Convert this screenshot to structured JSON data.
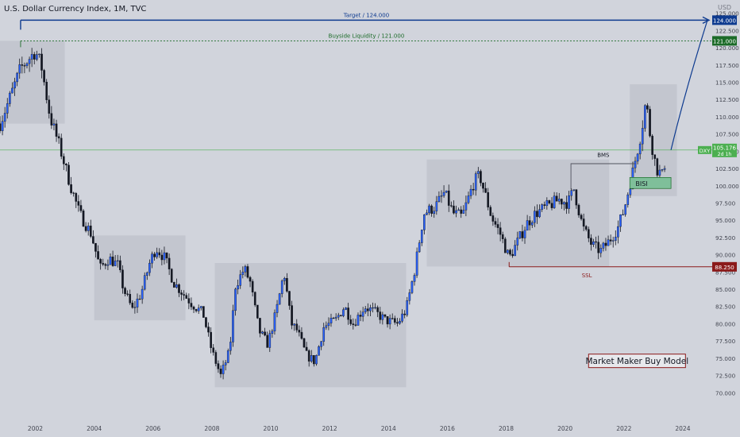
{
  "header": {
    "symbol_title": "U.S. Dollar Currency Index, 1M, TVC"
  },
  "price_axis": {
    "currency": "USD"
  },
  "colors": {
    "background": "#d1d4dc",
    "up": "#2962ff",
    "down": "#131722",
    "target": "#0d3a8f",
    "liquidity": "#1b6b28",
    "ssl": "#8b1a1a",
    "price_line": "#4caf50",
    "bisi_fill": "#7fbf9a"
  },
  "chart_data": {
    "type": "candlestick",
    "title": "U.S. Dollar Currency Index, 1M, TVC",
    "interval": "1M",
    "ylabel": "USD",
    "ylim": [
      67.5,
      126
    ],
    "xlim": [
      2000.8,
      2025.0
    ],
    "y_ticks": [
      70,
      72.5,
      75,
      77.5,
      80,
      82.5,
      85,
      87.5,
      90,
      92.5,
      95,
      97.5,
      100,
      102.5,
      105,
      107.5,
      110,
      112.5,
      115,
      117.5,
      120,
      122.5,
      125
    ],
    "y_tick_labels": [
      "70.000",
      "72.500",
      "75.000",
      "77.500",
      "80.000",
      "82.500",
      "85.000",
      "87.500",
      "90.000",
      "92.500",
      "95.000",
      "97.500",
      "100.000",
      "102.500",
      "105.000",
      "107.500",
      "110.000",
      "112.500",
      "115.000",
      "117.500",
      "120.000",
      "122.500",
      "125.000"
    ],
    "x_ticks": [
      2002,
      2004,
      2006,
      2008,
      2010,
      2012,
      2014,
      2016,
      2018,
      2020,
      2022,
      2024
    ],
    "x_tick_labels": [
      "2002",
      "2004",
      "2006",
      "2008",
      "2010",
      "2012",
      "2014",
      "2016",
      "2018",
      "2020",
      "2022",
      "2024"
    ],
    "anchors": [
      [
        2000.8,
        109.0
      ],
      [
        2001.2,
        113.5
      ],
      [
        2001.5,
        117.0
      ],
      [
        2001.8,
        118.5
      ],
      [
        2002.0,
        119.5
      ],
      [
        2002.2,
        117.5
      ],
      [
        2002.5,
        110.0
      ],
      [
        2002.8,
        106.0
      ],
      [
        2003.2,
        100.0
      ],
      [
        2003.5,
        96.0
      ],
      [
        2003.9,
        93.0
      ],
      [
        2004.2,
        88.0
      ],
      [
        2004.5,
        89.5
      ],
      [
        2004.8,
        88.5
      ],
      [
        2005.0,
        85.0
      ],
      [
        2005.3,
        82.0
      ],
      [
        2005.6,
        84.5
      ],
      [
        2005.9,
        89.0
      ],
      [
        2006.1,
        91.0
      ],
      [
        2006.4,
        89.5
      ],
      [
        2006.7,
        86.0
      ],
      [
        2007.0,
        84.5
      ],
      [
        2007.3,
        83.0
      ],
      [
        2007.7,
        81.5
      ],
      [
        2008.0,
        76.0
      ],
      [
        2008.3,
        72.5
      ],
      [
        2008.6,
        76.0
      ],
      [
        2008.8,
        85.5
      ],
      [
        2009.1,
        88.0
      ],
      [
        2009.3,
        86.0
      ],
      [
        2009.6,
        79.0
      ],
      [
        2009.9,
        77.0
      ],
      [
        2010.2,
        82.0
      ],
      [
        2010.45,
        87.5
      ],
      [
        2010.7,
        80.0
      ],
      [
        2010.9,
        79.0
      ],
      [
        2011.2,
        75.5
      ],
      [
        2011.5,
        74.5
      ],
      [
        2011.8,
        79.5
      ],
      [
        2012.2,
        80.5
      ],
      [
        2012.5,
        82.5
      ],
      [
        2012.8,
        80.0
      ],
      [
        2013.2,
        82.5
      ],
      [
        2013.6,
        81.5
      ],
      [
        2013.9,
        80.5
      ],
      [
        2014.3,
        80.0
      ],
      [
        2014.6,
        82.0
      ],
      [
        2014.9,
        88.0
      ],
      [
        2015.2,
        96.0
      ],
      [
        2015.6,
        97.0
      ],
      [
        2015.9,
        99.0
      ],
      [
        2016.2,
        96.0
      ],
      [
        2016.5,
        95.5
      ],
      [
        2016.9,
        100.5
      ],
      [
        2017.1,
        101.5
      ],
      [
        2017.5,
        95.5
      ],
      [
        2017.8,
        93.0
      ],
      [
        2018.1,
        89.5
      ],
      [
        2018.4,
        92.0
      ],
      [
        2018.7,
        94.5
      ],
      [
        2019.0,
        96.0
      ],
      [
        2019.4,
        97.0
      ],
      [
        2019.8,
        98.0
      ],
      [
        2020.1,
        97.5
      ],
      [
        2020.3,
        99.5
      ],
      [
        2020.6,
        94.0
      ],
      [
        2020.9,
        91.5
      ],
      [
        2021.2,
        90.5
      ],
      [
        2021.5,
        92.0
      ],
      [
        2021.8,
        94.0
      ],
      [
        2022.0,
        96.5
      ],
      [
        2022.3,
        102.0
      ],
      [
        2022.6,
        108.0
      ],
      [
        2022.75,
        112.5
      ],
      [
        2022.9,
        107.0
      ],
      [
        2023.1,
        102.5
      ],
      [
        2023.3,
        101.5
      ],
      [
        2023.4,
        103.5
      ]
    ],
    "last_price": "105.176",
    "last_price_sub": "2d 1h",
    "symbol_tag": "DXY",
    "levels": [
      {
        "name": "Target",
        "price": 124.0,
        "label": "Target  /  124.000",
        "badge": "124.000"
      },
      {
        "name": "Buyside Liquidity",
        "price": 121.0,
        "label": "Buyside Liquidity  /  121.000",
        "badge": "121.000"
      },
      {
        "name": "SSL",
        "price": 88.25,
        "label": "SSL",
        "badge": "88.250"
      }
    ],
    "zones": [
      {
        "x": [
          2000.8,
          2003.0
        ],
        "y": [
          109.0,
          121.0
        ]
      },
      {
        "x": [
          2004.0,
          2007.1
        ],
        "y": [
          80.5,
          92.8
        ]
      },
      {
        "x": [
          2008.1,
          2014.6
        ],
        "y": [
          70.8,
          88.8
        ]
      },
      {
        "x": [
          2015.3,
          2021.5
        ],
        "y": [
          88.3,
          103.8
        ]
      },
      {
        "x": [
          2022.2,
          2023.8
        ],
        "y": [
          98.5,
          114.7
        ]
      }
    ],
    "annotations": [
      {
        "text": "BMS",
        "x": 2021.3,
        "y": 104.2
      },
      {
        "text": "BISI",
        "x": 2022.6,
        "y": 100.3
      },
      {
        "text": "Market Maker Buy Model"
      }
    ]
  }
}
